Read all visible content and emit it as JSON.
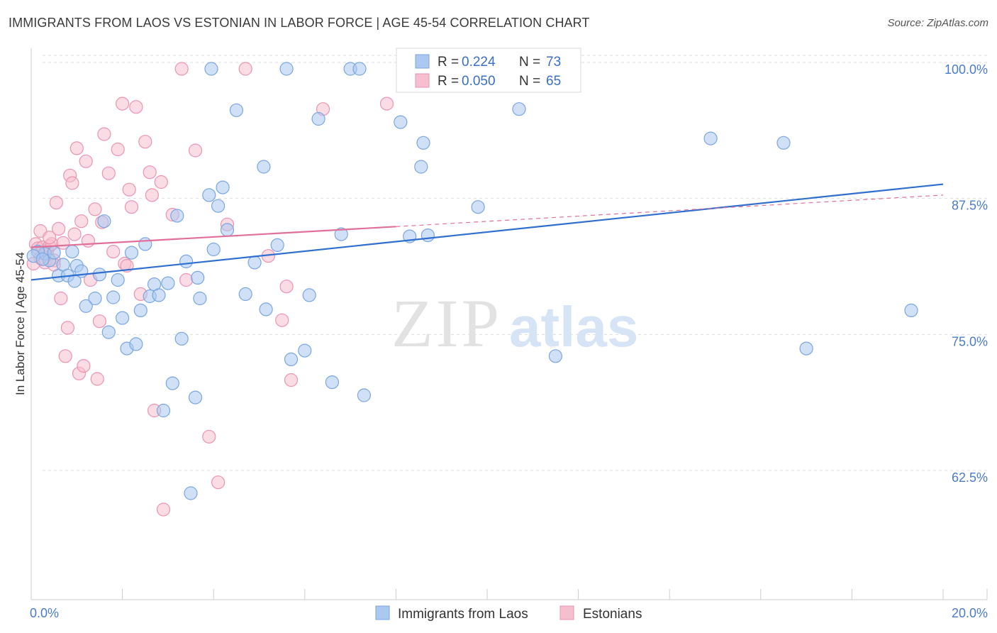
{
  "title": "IMMIGRANTS FROM LAOS VS ESTONIAN IN LABOR FORCE | AGE 45-54 CORRELATION CHART",
  "source": "Source: ZipAtlas.com",
  "watermark": {
    "zip": "ZIP",
    "atlas": "atlas"
  },
  "colors": {
    "blue_fill": "#aac8f0",
    "blue_stroke": "#7aa6e0",
    "blue_line": "#2f6fcf",
    "pink_fill": "#f6bfd0",
    "pink_stroke": "#ec93b0",
    "pink_line": "#e0709a",
    "grid": "#dddddd",
    "tick_text": "#4a7cc9"
  },
  "chart_data": {
    "type": "scatter",
    "title": "IMMIGRANTS FROM LAOS VS ESTONIAN IN LABOR FORCE | AGE 45-54 CORRELATION CHART",
    "xlabel": "",
    "ylabel": "In Labor Force | Age 45-54",
    "xlim": [
      0,
      20
    ],
    "ylim": [
      52.5,
      102.5
    ],
    "x_tick_labels": [
      "0.0%",
      "20.0%"
    ],
    "y_ticks": [
      {
        "value": 100,
        "label": "100.0%"
      },
      {
        "value": 87.5,
        "label": "87.5%"
      },
      {
        "value": 75,
        "label": "75.0%"
      },
      {
        "value": 62.5,
        "label": "62.5%"
      }
    ],
    "legend": {
      "rows": [
        {
          "r_label": "R =",
          "r_value": "0.224",
          "n_label": "N =",
          "n_value": "73"
        },
        {
          "r_label": "R =",
          "r_value": "0.050",
          "n_label": "N =",
          "n_value": "65"
        }
      ]
    },
    "series": [
      {
        "name": "Immigrants from Laos",
        "r": 0.224,
        "n": 73,
        "trend": {
          "x0": 0,
          "y0": 80.6,
          "x1": 20,
          "y1": 89.4
        },
        "points": [
          [
            0.3,
            83.0
          ],
          [
            0.4,
            82.4
          ],
          [
            0.5,
            83.1
          ],
          [
            0.6,
            81.0
          ],
          [
            0.7,
            82.0
          ],
          [
            0.9,
            83.2
          ],
          [
            1.0,
            81.9
          ],
          [
            1.1,
            81.4
          ],
          [
            0.8,
            81.0
          ],
          [
            0.95,
            80.5
          ],
          [
            1.2,
            78.2
          ],
          [
            1.4,
            78.9
          ],
          [
            1.5,
            81.1
          ],
          [
            1.6,
            86.0
          ],
          [
            1.7,
            75.8
          ],
          [
            1.8,
            79.0
          ],
          [
            1.9,
            80.6
          ],
          [
            2.0,
            77.1
          ],
          [
            2.1,
            74.3
          ],
          [
            2.2,
            83.1
          ],
          [
            2.3,
            74.7
          ],
          [
            2.4,
            77.8
          ],
          [
            2.5,
            83.9
          ],
          [
            2.6,
            79.1
          ],
          [
            2.7,
            80.2
          ],
          [
            2.8,
            79.2
          ],
          [
            2.9,
            68.6
          ],
          [
            3.0,
            80.3
          ],
          [
            3.1,
            71.1
          ],
          [
            3.2,
            86.5
          ],
          [
            3.3,
            75.2
          ],
          [
            3.4,
            82.3
          ],
          [
            3.5,
            61.0
          ],
          [
            3.6,
            69.8
          ],
          [
            3.65,
            80.8
          ],
          [
            3.7,
            78.9
          ],
          [
            3.9,
            88.4
          ],
          [
            3.95,
            100.0
          ],
          [
            4.0,
            83.4
          ],
          [
            4.1,
            87.4
          ],
          [
            4.2,
            89.1
          ],
          [
            4.3,
            85.2
          ],
          [
            4.5,
            96.2
          ],
          [
            4.7,
            79.3
          ],
          [
            4.9,
            82.2
          ],
          [
            5.1,
            91.0
          ],
          [
            5.15,
            77.9
          ],
          [
            5.4,
            83.8
          ],
          [
            5.6,
            100.0
          ],
          [
            5.7,
            73.3
          ],
          [
            6.0,
            74.1
          ],
          [
            6.1,
            79.2
          ],
          [
            6.3,
            95.4
          ],
          [
            6.6,
            71.2
          ],
          [
            6.8,
            84.8
          ],
          [
            7.0,
            100.0
          ],
          [
            7.2,
            100.0
          ],
          [
            7.3,
            70.0
          ],
          [
            8.1,
            95.1
          ],
          [
            8.3,
            84.6
          ],
          [
            8.6,
            93.2
          ],
          [
            8.7,
            84.7
          ],
          [
            8.55,
            91.0
          ],
          [
            9.8,
            87.3
          ],
          [
            10.7,
            96.3
          ],
          [
            11.5,
            73.6
          ],
          [
            14.9,
            93.6
          ],
          [
            16.5,
            93.2
          ],
          [
            17.0,
            74.3
          ],
          [
            19.3,
            77.8
          ],
          [
            0.15,
            83.2
          ],
          [
            0.05,
            82.8
          ],
          [
            0.25,
            82.5
          ]
        ]
      },
      {
        "name": "Estonians",
        "r": 0.05,
        "n": 65,
        "trend_solid": {
          "x0": 0,
          "y0": 83.6,
          "x1": 8,
          "y1": 85.5
        },
        "trend_dashed": {
          "x0": 8,
          "y0": 85.5,
          "x1": 20,
          "y1": 88.4
        },
        "points": [
          [
            0.1,
            83.9
          ],
          [
            0.15,
            83.5
          ],
          [
            0.2,
            85.1
          ],
          [
            0.25,
            83.6
          ],
          [
            0.3,
            82.2
          ],
          [
            0.35,
            83.3
          ],
          [
            0.4,
            83.7
          ],
          [
            0.45,
            83.9
          ],
          [
            0.5,
            82.4
          ],
          [
            0.55,
            87.7
          ],
          [
            0.6,
            85.3
          ],
          [
            0.65,
            78.9
          ],
          [
            0.7,
            84.0
          ],
          [
            0.75,
            73.6
          ],
          [
            0.8,
            76.2
          ],
          [
            0.85,
            90.2
          ],
          [
            0.9,
            89.5
          ],
          [
            0.95,
            84.8
          ],
          [
            1.0,
            92.7
          ],
          [
            1.05,
            72.0
          ],
          [
            1.1,
            86.0
          ],
          [
            1.15,
            72.7
          ],
          [
            1.2,
            91.5
          ],
          [
            1.3,
            80.6
          ],
          [
            1.4,
            87.1
          ],
          [
            1.45,
            71.5
          ],
          [
            1.5,
            76.8
          ],
          [
            1.55,
            85.9
          ],
          [
            1.6,
            94.0
          ],
          [
            1.7,
            90.4
          ],
          [
            1.8,
            83.2
          ],
          [
            1.9,
            92.6
          ],
          [
            2.0,
            96.8
          ],
          [
            2.05,
            82.1
          ],
          [
            2.1,
            81.9
          ],
          [
            2.15,
            88.9
          ],
          [
            2.2,
            87.3
          ],
          [
            2.3,
            96.5
          ],
          [
            2.4,
            79.3
          ],
          [
            2.5,
            93.3
          ],
          [
            2.6,
            90.5
          ],
          [
            2.65,
            88.4
          ],
          [
            2.7,
            68.6
          ],
          [
            2.85,
            89.6
          ],
          [
            2.9,
            59.5
          ],
          [
            3.1,
            86.6
          ],
          [
            3.3,
            100.0
          ],
          [
            3.4,
            80.6
          ],
          [
            3.6,
            92.5
          ],
          [
            3.9,
            66.2
          ],
          [
            4.1,
            62.0
          ],
          [
            4.3,
            85.7
          ],
          [
            4.7,
            100.0
          ],
          [
            5.2,
            82.8
          ],
          [
            5.5,
            76.9
          ],
          [
            5.6,
            80.0
          ],
          [
            5.7,
            71.4
          ],
          [
            6.4,
            96.3
          ],
          [
            7.8,
            96.8
          ],
          [
            1.25,
            84.2
          ],
          [
            0.4,
            84.5
          ],
          [
            0.2,
            82.6
          ],
          [
            0.5,
            82.0
          ],
          [
            0.3,
            83.1
          ],
          [
            0.05,
            82.1
          ]
        ]
      }
    ]
  }
}
